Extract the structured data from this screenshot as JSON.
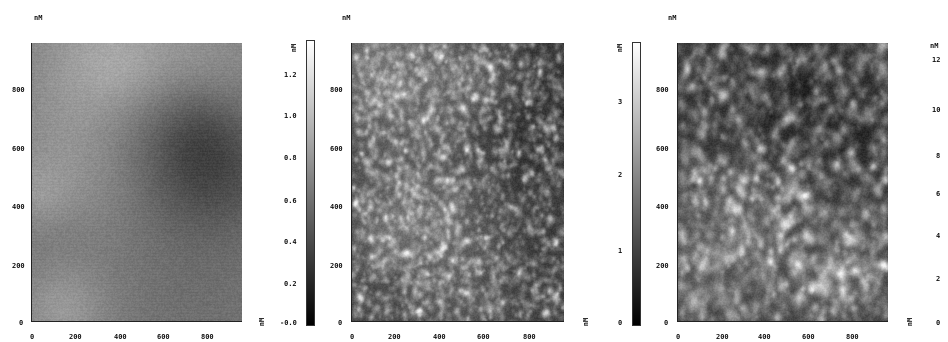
{
  "axis_unit": "nM",
  "panels": [
    {
      "id": "p1",
      "x_ticks": [
        "0",
        "200",
        "400",
        "600",
        "800"
      ],
      "y_ticks": [
        "0",
        "200",
        "400",
        "600",
        "800"
      ],
      "texture": "smooth-mottled",
      "colorbar_unit": "nM",
      "colorbar_ticks": [
        "1.2",
        "1.0",
        "0.8",
        "0.6",
        "0.4",
        "0.2",
        "-0.0"
      ]
    },
    {
      "id": "p2",
      "x_ticks": [
        "0",
        "200",
        "400",
        "600",
        "800"
      ],
      "y_ticks": [
        "0",
        "200",
        "400",
        "600",
        "800"
      ],
      "texture": "fine-grain",
      "colorbar_unit": "nM",
      "colorbar_ticks": [
        "3",
        "2",
        "1",
        "0"
      ]
    },
    {
      "id": "p3",
      "x_ticks": [
        "0",
        "200",
        "400",
        "600",
        "800"
      ],
      "y_ticks": [
        "0",
        "200",
        "400",
        "600",
        "800"
      ],
      "texture": "coarse-grain",
      "colorbar_unit": "nM",
      "colorbar_ticks": [
        "12",
        "10",
        "8",
        "6",
        "4",
        "2",
        "0"
      ]
    }
  ]
}
